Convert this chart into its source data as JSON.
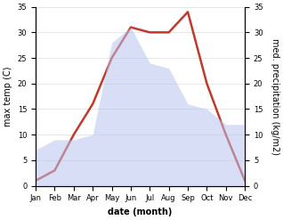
{
  "months": [
    "Jan",
    "Feb",
    "Mar",
    "Apr",
    "May",
    "Jun",
    "Jul",
    "Aug",
    "Sep",
    "Oct",
    "Nov",
    "Dec"
  ],
  "temp": [
    1,
    3,
    10,
    16,
    25,
    31,
    30,
    30,
    34,
    20,
    10,
    1
  ],
  "precip": [
    7,
    9,
    9,
    10,
    28,
    31,
    24,
    23,
    16,
    15,
    12,
    12
  ],
  "temp_color": "#c0392b",
  "precip_color": "#b8c4ee",
  "ylim": [
    0,
    35
  ],
  "ylabel_left": "max temp (C)",
  "ylabel_right": "med. precipitation (kg/m2)",
  "xlabel": "date (month)",
  "axis_fontsize": 7,
  "tick_fontsize": 6,
  "ylabel_fontsize": 7,
  "xlabel_fontsize": 7,
  "background_color": "#ffffff",
  "fill_alpha": 0.55,
  "linewidth": 1.8,
  "yticks": [
    0,
    5,
    10,
    15,
    20,
    25,
    30,
    35
  ]
}
